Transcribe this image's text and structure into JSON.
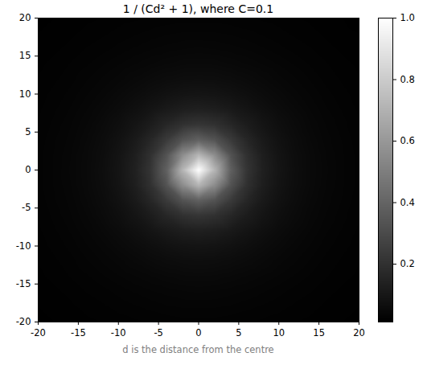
{
  "chart_data": {
    "type": "heatmap",
    "title": "1 / (Cd² + 1), where C=0.1",
    "caption": "d is the distance from the centre",
    "color": "gray",
    "x": [
      -20,
      -18,
      -16,
      -14,
      -12,
      -10,
      -8,
      -6,
      -4,
      -2,
      0,
      2,
      4,
      6,
      8,
      10,
      12,
      14,
      16,
      18,
      20
    ],
    "y": [
      -20,
      -18,
      -16,
      -14,
      -12,
      -10,
      -8,
      -6,
      -4,
      -2,
      0,
      2,
      4,
      6,
      8,
      10,
      12,
      14,
      16,
      18,
      20
    ],
    "z": [
      [
        0.012,
        0.014,
        0.015,
        0.017,
        0.018,
        0.02,
        0.021,
        0.022,
        0.023,
        0.024,
        0.024,
        0.024,
        0.023,
        0.022,
        0.021,
        0.02,
        0.018,
        0.017,
        0.015,
        0.014,
        0.012
      ],
      [
        0.014,
        0.015,
        0.017,
        0.019,
        0.021,
        0.023,
        0.025,
        0.027,
        0.029,
        0.03,
        0.03,
        0.03,
        0.029,
        0.027,
        0.025,
        0.023,
        0.021,
        0.019,
        0.017,
        0.015,
        0.014
      ],
      [
        0.015,
        0.017,
        0.019,
        0.022,
        0.024,
        0.027,
        0.03,
        0.033,
        0.035,
        0.037,
        0.038,
        0.037,
        0.035,
        0.033,
        0.03,
        0.027,
        0.024,
        0.022,
        0.019,
        0.017,
        0.015
      ],
      [
        0.017,
        0.019,
        0.022,
        0.025,
        0.029,
        0.033,
        0.037,
        0.041,
        0.045,
        0.048,
        0.049,
        0.048,
        0.045,
        0.041,
        0.037,
        0.033,
        0.029,
        0.025,
        0.022,
        0.019,
        0.017
      ],
      [
        0.018,
        0.021,
        0.024,
        0.029,
        0.034,
        0.039,
        0.046,
        0.053,
        0.059,
        0.063,
        0.065,
        0.063,
        0.059,
        0.053,
        0.046,
        0.039,
        0.034,
        0.029,
        0.024,
        0.021,
        0.018
      ],
      [
        0.02,
        0.023,
        0.027,
        0.033,
        0.039,
        0.048,
        0.057,
        0.068,
        0.079,
        0.088,
        0.091,
        0.088,
        0.079,
        0.068,
        0.057,
        0.048,
        0.039,
        0.033,
        0.027,
        0.023,
        0.02
      ],
      [
        0.021,
        0.025,
        0.03,
        0.037,
        0.046,
        0.057,
        0.072,
        0.091,
        0.111,
        0.128,
        0.135,
        0.128,
        0.111,
        0.091,
        0.072,
        0.057,
        0.046,
        0.037,
        0.03,
        0.025,
        0.021
      ],
      [
        0.022,
        0.027,
        0.033,
        0.041,
        0.053,
        0.068,
        0.091,
        0.122,
        0.161,
        0.2,
        0.217,
        0.2,
        0.161,
        0.122,
        0.091,
        0.068,
        0.053,
        0.041,
        0.033,
        0.027,
        0.022
      ],
      [
        0.023,
        0.029,
        0.035,
        0.045,
        0.059,
        0.079,
        0.111,
        0.161,
        0.238,
        0.333,
        0.385,
        0.333,
        0.238,
        0.161,
        0.111,
        0.079,
        0.059,
        0.045,
        0.035,
        0.029,
        0.023
      ],
      [
        0.024,
        0.03,
        0.037,
        0.048,
        0.063,
        0.088,
        0.128,
        0.2,
        0.333,
        0.556,
        0.714,
        0.556,
        0.333,
        0.2,
        0.128,
        0.088,
        0.063,
        0.048,
        0.037,
        0.03,
        0.024
      ],
      [
        0.024,
        0.03,
        0.038,
        0.049,
        0.065,
        0.091,
        0.135,
        0.217,
        0.385,
        0.714,
        1,
        0.714,
        0.385,
        0.217,
        0.135,
        0.091,
        0.065,
        0.049,
        0.038,
        0.03,
        0.024
      ],
      [
        0.024,
        0.03,
        0.037,
        0.048,
        0.063,
        0.088,
        0.128,
        0.2,
        0.333,
        0.556,
        0.714,
        0.556,
        0.333,
        0.2,
        0.128,
        0.088,
        0.063,
        0.048,
        0.037,
        0.03,
        0.024
      ],
      [
        0.023,
        0.029,
        0.035,
        0.045,
        0.059,
        0.079,
        0.111,
        0.161,
        0.238,
        0.333,
        0.385,
        0.333,
        0.238,
        0.161,
        0.111,
        0.079,
        0.059,
        0.045,
        0.035,
        0.029,
        0.023
      ],
      [
        0.022,
        0.027,
        0.033,
        0.041,
        0.053,
        0.068,
        0.091,
        0.122,
        0.161,
        0.2,
        0.217,
        0.2,
        0.161,
        0.122,
        0.091,
        0.068,
        0.053,
        0.041,
        0.033,
        0.027,
        0.022
      ],
      [
        0.021,
        0.025,
        0.03,
        0.037,
        0.046,
        0.057,
        0.072,
        0.091,
        0.111,
        0.128,
        0.135,
        0.128,
        0.111,
        0.091,
        0.072,
        0.057,
        0.046,
        0.037,
        0.03,
        0.025,
        0.021
      ],
      [
        0.02,
        0.023,
        0.027,
        0.033,
        0.039,
        0.048,
        0.057,
        0.068,
        0.079,
        0.088,
        0.091,
        0.088,
        0.079,
        0.068,
        0.057,
        0.048,
        0.039,
        0.033,
        0.027,
        0.023,
        0.02
      ],
      [
        0.018,
        0.021,
        0.024,
        0.029,
        0.034,
        0.039,
        0.046,
        0.053,
        0.059,
        0.063,
        0.065,
        0.063,
        0.059,
        0.053,
        0.046,
        0.039,
        0.034,
        0.029,
        0.024,
        0.021,
        0.018
      ],
      [
        0.017,
        0.019,
        0.022,
        0.025,
        0.029,
        0.033,
        0.037,
        0.041,
        0.045,
        0.048,
        0.049,
        0.048,
        0.045,
        0.041,
        0.037,
        0.033,
        0.029,
        0.025,
        0.022,
        0.019,
        0.017
      ],
      [
        0.015,
        0.017,
        0.019,
        0.022,
        0.024,
        0.027,
        0.03,
        0.033,
        0.035,
        0.037,
        0.038,
        0.037,
        0.035,
        0.033,
        0.03,
        0.027,
        0.024,
        0.022,
        0.019,
        0.017,
        0.015
      ],
      [
        0.014,
        0.015,
        0.017,
        0.019,
        0.021,
        0.023,
        0.025,
        0.027,
        0.029,
        0.03,
        0.03,
        0.03,
        0.029,
        0.027,
        0.025,
        0.023,
        0.021,
        0.019,
        0.017,
        0.015,
        0.014
      ],
      [
        0.012,
        0.014,
        0.015,
        0.017,
        0.018,
        0.02,
        0.021,
        0.022,
        0.023,
        0.024,
        0.024,
        0.024,
        0.023,
        0.022,
        0.021,
        0.02,
        0.018,
        0.017,
        0.015,
        0.014,
        0.012
      ]
    ],
    "xlim": [
      -20,
      20
    ],
    "ylim": [
      -20,
      20
    ],
    "xticks": [
      -20,
      -15,
      -10,
      -5,
      0,
      5,
      10,
      15,
      20
    ],
    "yticks": [
      -20,
      -15,
      -10,
      -5,
      0,
      5,
      10,
      15,
      20
    ],
    "colorbar_range": [
      0.012,
      1
    ],
    "colorbar_ticks": [
      0.2,
      0.4,
      0.6,
      0.8,
      {
        "value": 1,
        "label": "1.0"
      }
    ]
  }
}
